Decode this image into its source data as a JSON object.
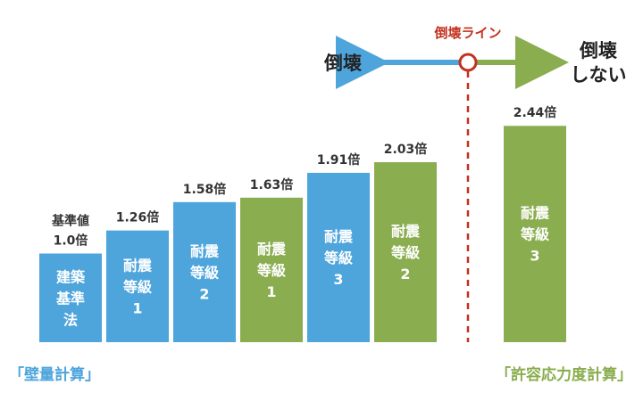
{
  "colors": {
    "wall_method": "#4ea5dc",
    "allowable_stress": "#8aad4f",
    "collapse_line": "#c3311f",
    "text_dark": "#222222"
  },
  "indicator": {
    "line_label": "倒壊ライン",
    "left_label": "倒壊",
    "right_label_line1": "倒壊",
    "right_label_line2": "しない"
  },
  "methods": {
    "wall": "「壁量計算」",
    "allowable": "「許容応力度計算」"
  },
  "chart_data": {
    "type": "bar",
    "unit": "倍",
    "series": [
      {
        "group": "wall",
        "label": [
          "建築",
          "基準",
          "法"
        ],
        "value": 1.0,
        "value_label": [
          "基準値",
          "1.0倍"
        ]
      },
      {
        "group": "wall",
        "label": [
          "耐震",
          "等級",
          "1"
        ],
        "value": 1.26,
        "value_label": [
          "1.26倍"
        ]
      },
      {
        "group": "wall",
        "label": [
          "耐震",
          "等級",
          "2"
        ],
        "value": 1.58,
        "value_label": [
          "1.58倍"
        ]
      },
      {
        "group": "allowable",
        "label": [
          "耐震",
          "等級",
          "1"
        ],
        "value": 1.63,
        "value_label": [
          "1.63倍"
        ]
      },
      {
        "group": "wall",
        "label": [
          "耐震",
          "等級",
          "3"
        ],
        "value": 1.91,
        "value_label": [
          "1.91倍"
        ]
      },
      {
        "group": "allowable",
        "label": [
          "耐震",
          "等級",
          "2"
        ],
        "value": 2.03,
        "value_label": [
          "2.03倍"
        ]
      },
      {
        "group": "allowable",
        "label": [
          "耐震",
          "等級",
          "3"
        ],
        "value": 2.44,
        "value_label": [
          "2.44倍"
        ]
      }
    ],
    "collapse_threshold_between": [
      2.03,
      2.44
    ],
    "grid": false,
    "legend": "none"
  }
}
